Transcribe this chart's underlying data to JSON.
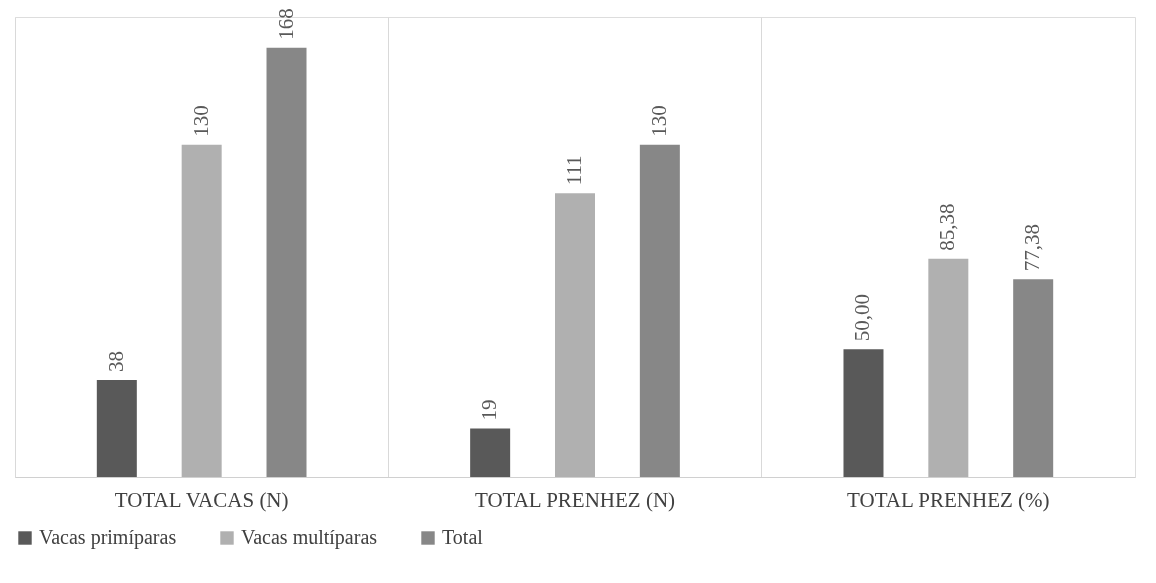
{
  "chart_data": {
    "type": "bar",
    "categories": [
      "TOTAL VACAS (N)",
      "TOTAL PRENHEZ (N)",
      "TOTAL PRENHEZ (%)"
    ],
    "series": [
      {
        "name": "Vacas primíparas",
        "color": "#595959",
        "values": [
          38,
          19,
          50.0
        ],
        "value_labels": [
          "38",
          "19",
          "50,00"
        ]
      },
      {
        "name": "Vacas multíparas",
        "color": "#b0b0b0",
        "values": [
          130,
          111,
          85.38
        ],
        "value_labels": [
          "130",
          "111",
          "85,38"
        ]
      },
      {
        "name": "Total",
        "color": "#878787",
        "values": [
          168,
          130,
          77.38
        ],
        "value_labels": [
          "168",
          "130",
          "77,38"
        ]
      }
    ],
    "grid": "x",
    "legend": "bottom",
    "tick_labels": "x"
  }
}
